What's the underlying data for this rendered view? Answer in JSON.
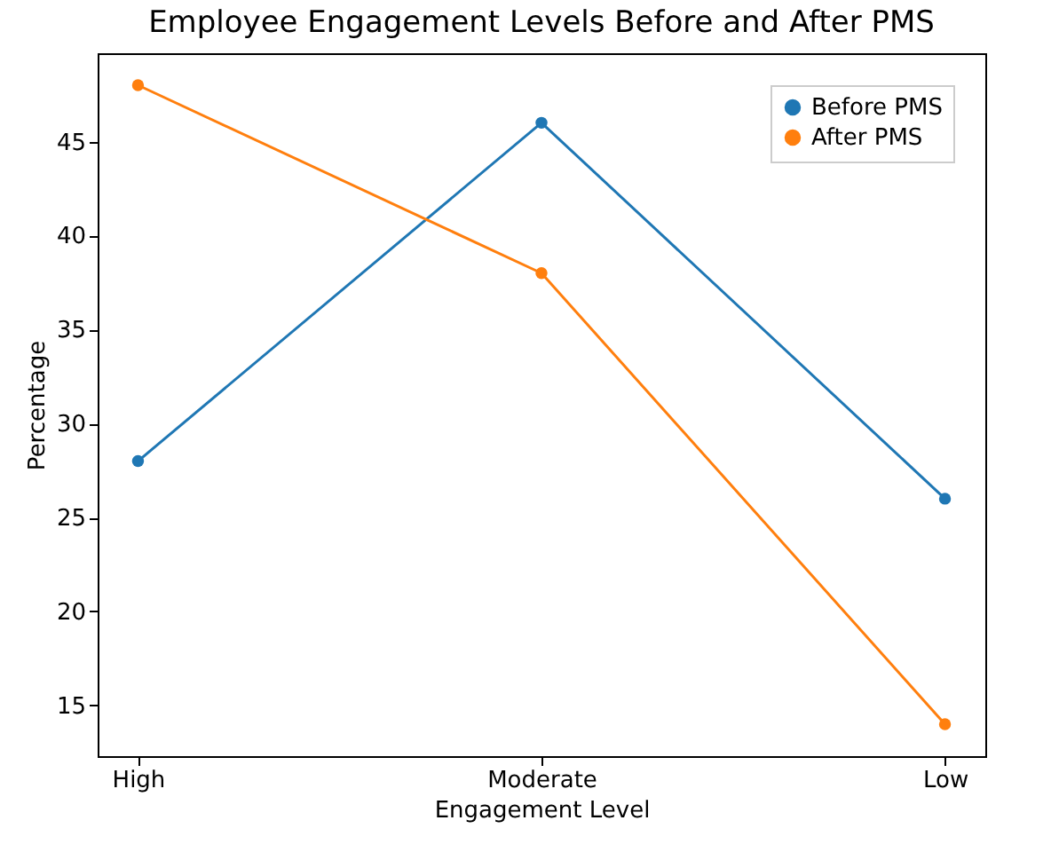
{
  "chart_data": {
    "type": "line",
    "title": "Employee Engagement Levels Before and After PMS",
    "xlabel": "Engagement Level",
    "ylabel": "Percentage",
    "categories": [
      "High",
      "Moderate",
      "Low"
    ],
    "series": [
      {
        "name": "Before PMS",
        "color": "#1f77b4",
        "values": [
          28,
          46,
          26
        ]
      },
      {
        "name": "After PMS",
        "color": "#ff7f0e",
        "values": [
          48,
          38,
          14
        ]
      }
    ],
    "ylim": [
      12.3,
      49.7
    ],
    "yticks": [
      15,
      20,
      25,
      30,
      35,
      40,
      45
    ],
    "grid": false,
    "legend": "top right",
    "marker": "circle"
  }
}
